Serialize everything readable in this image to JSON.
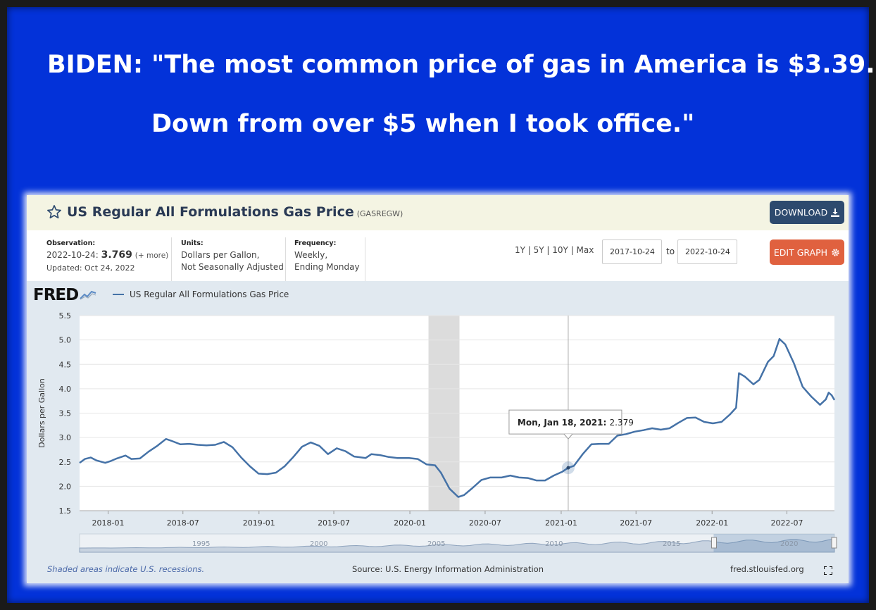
{
  "headline": {
    "line1": "BIDEN: \"The most common price of gas in America is $3.39.",
    "line2": "Down from over $5 when I took office.\""
  },
  "series": {
    "title": "US Regular All Formulations Gas Price",
    "code": "(GASREGW)"
  },
  "buttons": {
    "download": "DOWNLOAD",
    "edit": "EDIT GRAPH"
  },
  "observation": {
    "label": "Observation:",
    "date": "2022-10-24:",
    "value": "3.769",
    "more": "(+ more)",
    "updated": "Updated: Oct 24, 2022"
  },
  "units": {
    "label": "Units:",
    "line1": "Dollars per Gallon,",
    "line2": "Not Seasonally Adjusted"
  },
  "frequency": {
    "label": "Frequency:",
    "line1": "Weekly,",
    "line2": "Ending Monday"
  },
  "ranges": "1Y | 5Y | 10Y | Max",
  "date_from": "2017-10-24",
  "date_to": "2022-10-24",
  "to_label": "to",
  "logo": "FRED",
  "legend": "US Regular All Formulations Gas Price",
  "tooltip": {
    "date": "Mon, Jan 18, 2021:",
    "value": "2.379"
  },
  "footer": {
    "note": "Shaded areas indicate U.S. recessions.",
    "source": "Source: U.S. Energy Information Administration",
    "site": "fred.stlouisfed.org"
  },
  "navigator_labels": [
    "1995",
    "2000",
    "2005",
    "2010",
    "2015",
    "2020"
  ],
  "colors": {
    "frame": "#0332d9",
    "line": "#4572a7",
    "download": "#2d4a6e",
    "edit": "#e0613f",
    "recession": "#dcdcdc"
  },
  "chart_data": {
    "type": "line",
    "ylabel": "Dollars per Gallon",
    "ylim": [
      1.5,
      5.5
    ],
    "yticks": [
      1.5,
      2.0,
      2.5,
      3.0,
      3.5,
      4.0,
      4.5,
      5.0,
      5.5
    ],
    "xlim": [
      "2017-10-24",
      "2022-10-24"
    ],
    "xticks": [
      "2018-01",
      "2018-07",
      "2019-01",
      "2019-07",
      "2020-01",
      "2020-07",
      "2021-01",
      "2021-07",
      "2022-01",
      "2022-07"
    ],
    "recession": [
      "2020-02-15",
      "2020-04-30"
    ],
    "series": [
      {
        "name": "US Regular All Formulations Gas Price",
        "points": [
          [
            "2017-10-24",
            2.48
          ],
          [
            "2017-11-06",
            2.56
          ],
          [
            "2017-11-20",
            2.59
          ],
          [
            "2017-12-04",
            2.53
          ],
          [
            "2017-12-25",
            2.48
          ],
          [
            "2018-01-08",
            2.52
          ],
          [
            "2018-01-22",
            2.57
          ],
          [
            "2018-02-12",
            2.63
          ],
          [
            "2018-02-26",
            2.56
          ],
          [
            "2018-03-19",
            2.57
          ],
          [
            "2018-04-09",
            2.71
          ],
          [
            "2018-04-30",
            2.83
          ],
          [
            "2018-05-21",
            2.97
          ],
          [
            "2018-06-04",
            2.93
          ],
          [
            "2018-06-25",
            2.86
          ],
          [
            "2018-07-16",
            2.87
          ],
          [
            "2018-08-06",
            2.85
          ],
          [
            "2018-08-27",
            2.84
          ],
          [
            "2018-09-17",
            2.85
          ],
          [
            "2018-10-08",
            2.91
          ],
          [
            "2018-10-29",
            2.8
          ],
          [
            "2018-11-19",
            2.59
          ],
          [
            "2018-12-10",
            2.41
          ],
          [
            "2018-12-31",
            2.26
          ],
          [
            "2019-01-21",
            2.25
          ],
          [
            "2019-02-11",
            2.28
          ],
          [
            "2019-03-04",
            2.41
          ],
          [
            "2019-03-25",
            2.6
          ],
          [
            "2019-04-15",
            2.81
          ],
          [
            "2019-05-06",
            2.9
          ],
          [
            "2019-05-27",
            2.83
          ],
          [
            "2019-06-17",
            2.66
          ],
          [
            "2019-07-08",
            2.78
          ],
          [
            "2019-07-29",
            2.72
          ],
          [
            "2019-08-19",
            2.61
          ],
          [
            "2019-09-16",
            2.58
          ],
          [
            "2019-09-30",
            2.66
          ],
          [
            "2019-10-21",
            2.64
          ],
          [
            "2019-11-11",
            2.6
          ],
          [
            "2019-12-02",
            2.58
          ],
          [
            "2019-12-30",
            2.58
          ],
          [
            "2020-01-20",
            2.56
          ],
          [
            "2020-02-10",
            2.45
          ],
          [
            "2020-03-02",
            2.43
          ],
          [
            "2020-03-16",
            2.28
          ],
          [
            "2020-04-06",
            1.95
          ],
          [
            "2020-04-27",
            1.78
          ],
          [
            "2020-05-11",
            1.82
          ],
          [
            "2020-06-01",
            1.97
          ],
          [
            "2020-06-22",
            2.13
          ],
          [
            "2020-07-13",
            2.18
          ],
          [
            "2020-08-10",
            2.18
          ],
          [
            "2020-08-31",
            2.22
          ],
          [
            "2020-09-21",
            2.18
          ],
          [
            "2020-10-12",
            2.17
          ],
          [
            "2020-11-02",
            2.12
          ],
          [
            "2020-11-23",
            2.12
          ],
          [
            "2020-12-14",
            2.22
          ],
          [
            "2021-01-04",
            2.3
          ],
          [
            "2021-01-18",
            2.379
          ],
          [
            "2021-02-01",
            2.42
          ],
          [
            "2021-02-22",
            2.66
          ],
          [
            "2021-03-15",
            2.86
          ],
          [
            "2021-04-05",
            2.87
          ],
          [
            "2021-04-26",
            2.87
          ],
          [
            "2021-05-17",
            3.04
          ],
          [
            "2021-06-07",
            3.07
          ],
          [
            "2021-06-28",
            3.12
          ],
          [
            "2021-07-19",
            3.15
          ],
          [
            "2021-08-09",
            3.19
          ],
          [
            "2021-08-30",
            3.16
          ],
          [
            "2021-09-20",
            3.19
          ],
          [
            "2021-10-11",
            3.3
          ],
          [
            "2021-11-01",
            3.4
          ],
          [
            "2021-11-22",
            3.41
          ],
          [
            "2021-12-13",
            3.32
          ],
          [
            "2022-01-03",
            3.29
          ],
          [
            "2022-01-24",
            3.32
          ],
          [
            "2022-02-14",
            3.48
          ],
          [
            "2022-02-28",
            3.61
          ],
          [
            "2022-03-07",
            4.32
          ],
          [
            "2022-03-21",
            4.25
          ],
          [
            "2022-04-11",
            4.09
          ],
          [
            "2022-04-25",
            4.18
          ],
          [
            "2022-05-16",
            4.55
          ],
          [
            "2022-05-30",
            4.67
          ],
          [
            "2022-06-13",
            5.02
          ],
          [
            "2022-06-27",
            4.91
          ],
          [
            "2022-07-18",
            4.52
          ],
          [
            "2022-08-08",
            4.04
          ],
          [
            "2022-08-29",
            3.84
          ],
          [
            "2022-09-19",
            3.67
          ],
          [
            "2022-10-03",
            3.78
          ],
          [
            "2022-10-10",
            3.92
          ],
          [
            "2022-10-17",
            3.87
          ],
          [
            "2022-10-24",
            3.769
          ]
        ]
      }
    ]
  }
}
